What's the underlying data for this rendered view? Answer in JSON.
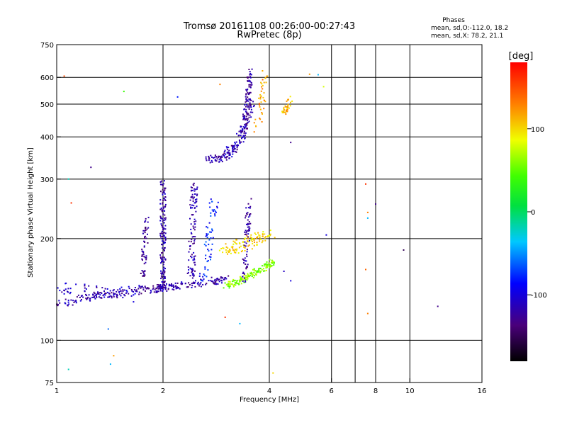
{
  "chart_data": {
    "type": "scatter",
    "title": "Tromsø 20161108 00:26:00-00:27:43",
    "subtitle": "RwPretec (8p)",
    "xlabel": "Frequency [MHz]",
    "ylabel": "Stationary phase Virtual Height [km]",
    "x_scale": "log",
    "y_scale": "log",
    "xlim": [
      1,
      16
    ],
    "ylim": [
      75,
      750
    ],
    "x_ticks": [
      1,
      2,
      4,
      6,
      8,
      10,
      16
    ],
    "x_tick_labels": [
      "1",
      "2",
      "4",
      "6",
      "8",
      "10",
      "16"
    ],
    "x_grid": [
      2,
      4,
      6,
      7,
      8,
      10
    ],
    "y_ticks": [
      75,
      100,
      200,
      300,
      400,
      500,
      600,
      750
    ],
    "y_tick_labels": [
      "75",
      "100",
      "200",
      "300",
      "400",
      "500",
      "600",
      "750"
    ],
    "y_grid": [
      100,
      200,
      300,
      400,
      500,
      600
    ],
    "grid": true,
    "legend": {
      "title": "Phases",
      "lines": [
        "mean, sd,O:-112.0, 18.2",
        "mean, sd,X:  78.2, 21.1"
      ],
      "placement": "top-right"
    },
    "colorbar": {
      "label": "[deg]",
      "ticks": [
        100,
        0,
        -100
      ],
      "tick_labels": [
        "100",
        "0",
        "-100"
      ],
      "range": [
        -180,
        180
      ]
    },
    "traces": [
      {
        "x": [
          1.0,
          1.15,
          1.3,
          1.5,
          1.7,
          1.9,
          2.0,
          2.2,
          2.5,
          2.8,
          3.0
        ],
        "y": [
          128,
          132,
          135,
          138,
          140,
          142,
          143,
          145,
          147,
          150,
          152
        ],
        "spread": 0.05,
        "phase": -120,
        "n": 260
      },
      {
        "x": [
          1.0,
          1.2,
          1.45,
          1.7
        ],
        "y": [
          145,
          140,
          138,
          140
        ],
        "spread": 0.08,
        "phase": -110,
        "n": 70
      },
      {
        "x": [
          1.75,
          1.8
        ],
        "y": [
          150,
          230
        ],
        "spread": 0.03,
        "phase": -125,
        "n": 60
      },
      {
        "x": [
          2.0,
          2.0
        ],
        "y": [
          140,
          300
        ],
        "spread": 0.03,
        "phase": -120,
        "n": 160
      },
      {
        "x": [
          2.4,
          2.45
        ],
        "y": [
          150,
          290
        ],
        "spread": 0.04,
        "phase": -118,
        "n": 110
      },
      {
        "x": [
          2.6,
          2.8
        ],
        "y": [
          150,
          260
        ],
        "spread": 0.05,
        "phase": -80,
        "n": 60
      },
      {
        "x": [
          3.0,
          3.3,
          3.6,
          3.9,
          4.1
        ],
        "y": [
          145,
          150,
          158,
          165,
          170
        ],
        "spread": 0.04,
        "phase": 60,
        "n": 150
      },
      {
        "x": [
          3.0,
          3.5,
          4.0
        ],
        "y": [
          185,
          195,
          205
        ],
        "spread": 0.08,
        "phase": 100,
        "n": 110
      },
      {
        "x": [
          3.4,
          3.5
        ],
        "y": [
          150,
          260
        ],
        "spread": 0.03,
        "phase": -120,
        "n": 70
      },
      {
        "x": [
          2.7,
          3.0,
          3.2,
          3.4,
          3.55
        ],
        "y": [
          340,
          350,
          375,
          420,
          520
        ],
        "spread": 0.05,
        "phase": -118,
        "n": 180
      },
      {
        "x": [
          3.4,
          3.55
        ],
        "y": [
          420,
          640
        ],
        "spread": 0.03,
        "phase": -122,
        "n": 80
      },
      {
        "x": [
          3.7,
          3.9
        ],
        "y": [
          420,
          620
        ],
        "spread": 0.04,
        "phase": 120,
        "n": 40
      },
      {
        "x": [
          4.4,
          4.6
        ],
        "y": [
          470,
          520
        ],
        "spread": 0.03,
        "phase": 110,
        "n": 35
      }
    ],
    "isolated_points": [
      {
        "x": 1.05,
        "y": 605,
        "phase": 150
      },
      {
        "x": 1.08,
        "y": 300,
        "phase": -20
      },
      {
        "x": 1.1,
        "y": 255,
        "phase": 160
      },
      {
        "x": 1.25,
        "y": 325,
        "phase": -130
      },
      {
        "x": 1.4,
        "y": 108,
        "phase": -60
      },
      {
        "x": 1.45,
        "y": 90,
        "phase": 120
      },
      {
        "x": 1.42,
        "y": 85,
        "phase": -40
      },
      {
        "x": 1.08,
        "y": 82,
        "phase": -20
      },
      {
        "x": 1.55,
        "y": 545,
        "phase": 40
      },
      {
        "x": 1.65,
        "y": 130,
        "phase": -100
      },
      {
        "x": 2.2,
        "y": 525,
        "phase": -80
      },
      {
        "x": 2.9,
        "y": 572,
        "phase": 130
      },
      {
        "x": 4.6,
        "y": 385,
        "phase": -130
      },
      {
        "x": 5.2,
        "y": 613,
        "phase": 120
      },
      {
        "x": 5.5,
        "y": 611,
        "phase": -40
      },
      {
        "x": 5.7,
        "y": 563,
        "phase": 80
      },
      {
        "x": 5.8,
        "y": 205,
        "phase": -100
      },
      {
        "x": 4.4,
        "y": 160,
        "phase": -110
      },
      {
        "x": 4.6,
        "y": 150,
        "phase": -100
      },
      {
        "x": 7.5,
        "y": 290,
        "phase": 160
      },
      {
        "x": 7.6,
        "y": 230,
        "phase": -40
      },
      {
        "x": 7.6,
        "y": 239,
        "phase": 130
      },
      {
        "x": 7.5,
        "y": 162,
        "phase": 140
      },
      {
        "x": 7.6,
        "y": 120,
        "phase": 130
      },
      {
        "x": 8.0,
        "y": 253,
        "phase": -130
      },
      {
        "x": 9.6,
        "y": 185,
        "phase": -150
      },
      {
        "x": 12.0,
        "y": 126,
        "phase": -130
      },
      {
        "x": 4.1,
        "y": 80,
        "phase": 100
      },
      {
        "x": 3.3,
        "y": 112,
        "phase": -40
      },
      {
        "x": 3.0,
        "y": 117,
        "phase": 160
      }
    ]
  }
}
